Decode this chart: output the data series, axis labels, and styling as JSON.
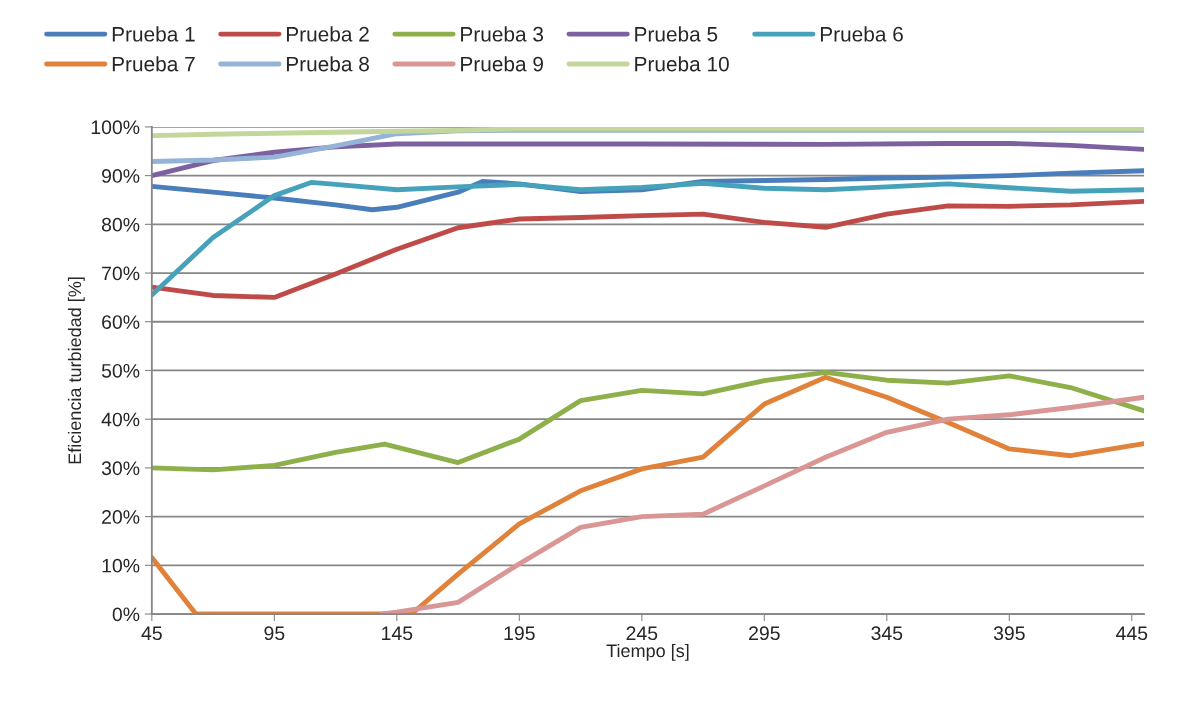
{
  "chart_data": {
    "type": "line",
    "xlabel": "Tiempo [s]",
    "ylabel": "Eficiencia turbiedad [%]",
    "xlim": [
      45,
      450
    ],
    "xticks": [
      45,
      95,
      145,
      195,
      245,
      295,
      345,
      395,
      445
    ],
    "ylim": [
      0,
      100
    ],
    "yticks": [
      {
        "value": 0,
        "label": "0%"
      },
      {
        "value": 10,
        "label": "10%"
      },
      {
        "value": 20,
        "label": "20%"
      },
      {
        "value": 30,
        "label": "30%"
      },
      {
        "value": 40,
        "label": "40%"
      },
      {
        "value": 50,
        "label": "50%"
      },
      {
        "value": 60,
        "label": "60%"
      },
      {
        "value": 70,
        "label": "70%"
      },
      {
        "value": 80,
        "label": "80%"
      },
      {
        "value": 90,
        "label": "90%"
      },
      {
        "value": 100,
        "label": "100%"
      }
    ],
    "grid": "y",
    "legend": "top",
    "marker": "none",
    "line_style": "solid",
    "series": [
      {
        "name": "Prueba 1",
        "color": "#4a7ebb",
        "x": [
          45,
          70,
          95,
          120,
          135,
          145,
          170,
          180,
          195,
          220,
          245,
          270,
          295,
          320,
          345,
          370,
          395,
          420,
          450
        ],
        "values": [
          87.8,
          86.6,
          85.4,
          84.0,
          83.0,
          83.5,
          86.6,
          88.8,
          88.3,
          86.7,
          87.1,
          88.8,
          89.0,
          89.2,
          89.5,
          89.7,
          90.0,
          90.5,
          91.0
        ]
      },
      {
        "name": "Prueba 2",
        "color": "#be4b48",
        "x": [
          45,
          70,
          95,
          120,
          145,
          170,
          195,
          220,
          245,
          270,
          295,
          320,
          345,
          370,
          395,
          420,
          450
        ],
        "values": [
          67.1,
          65.4,
          65.0,
          69.8,
          74.9,
          79.3,
          81.1,
          81.4,
          81.8,
          82.1,
          80.4,
          79.4,
          82.1,
          83.8,
          83.7,
          84.0,
          84.7
        ]
      },
      {
        "name": "Prueba 3",
        "color": "#8eb04a",
        "x": [
          45,
          70,
          95,
          120,
          140,
          170,
          195,
          220,
          245,
          270,
          295,
          320,
          345,
          370,
          395,
          420,
          450
        ],
        "values": [
          30.0,
          29.6,
          30.5,
          33.2,
          34.9,
          31.1,
          35.9,
          43.8,
          45.9,
          45.2,
          47.9,
          49.6,
          48.0,
          47.4,
          48.9,
          46.5,
          41.7
        ]
      },
      {
        "name": "Prueba 5",
        "color": "#7d60a0",
        "x": [
          45,
          70,
          95,
          120,
          145,
          170,
          195,
          245,
          320,
          370,
          395,
          420,
          450
        ],
        "values": [
          90.0,
          93.1,
          94.8,
          95.9,
          96.5,
          96.5,
          96.5,
          96.5,
          96.4,
          96.6,
          96.6,
          96.2,
          95.4
        ]
      },
      {
        "name": "Prueba 6",
        "color": "#46a2bb",
        "x": [
          45,
          70,
          95,
          110,
          120,
          145,
          170,
          195,
          220,
          245,
          270,
          295,
          320,
          345,
          370,
          395,
          420,
          450
        ],
        "values": [
          65.5,
          77.3,
          85.9,
          88.6,
          88.2,
          87.1,
          87.7,
          88.2,
          87.1,
          87.6,
          88.4,
          87.4,
          87.1,
          87.7,
          88.3,
          87.5,
          86.8,
          87.1
        ]
      },
      {
        "name": "Prueba 7",
        "color": "#e0823a",
        "x": [
          45,
          63,
          151,
          170,
          195,
          220,
          245,
          270,
          295,
          320,
          345,
          370,
          395,
          420,
          450
        ],
        "values": [
          11.6,
          0,
          0,
          8.2,
          18.5,
          25.3,
          29.8,
          32.2,
          43.1,
          48.6,
          44.5,
          39.3,
          33.9,
          32.5,
          35.0
        ]
      },
      {
        "name": "Prueba 8",
        "color": "#95b3d7",
        "x": [
          45,
          70,
          95,
          120,
          145,
          170,
          195,
          245,
          320,
          395,
          450
        ],
        "values": [
          92.9,
          93.2,
          93.8,
          96.1,
          98.6,
          99.2,
          99.3,
          99.3,
          99.3,
          99.3,
          99.3
        ]
      },
      {
        "name": "Prueba 9",
        "color": "#d99694",
        "x": [
          139,
          145,
          170,
          195,
          220,
          245,
          270,
          295,
          320,
          345,
          370,
          395,
          420,
          450
        ],
        "values": [
          0,
          0.4,
          2.4,
          10.3,
          17.8,
          20.0,
          20.5,
          26.3,
          32.2,
          37.3,
          40.0,
          40.9,
          42.4,
          44.5
        ]
      },
      {
        "name": "Prueba 10",
        "color": "#c3d69b",
        "x": [
          45,
          70,
          95,
          120,
          145,
          170,
          195,
          245,
          320,
          395,
          450
        ],
        "values": [
          98.2,
          98.5,
          98.7,
          98.9,
          99.1,
          99.3,
          99.6,
          99.6,
          99.6,
          99.6,
          99.6
        ]
      }
    ]
  }
}
